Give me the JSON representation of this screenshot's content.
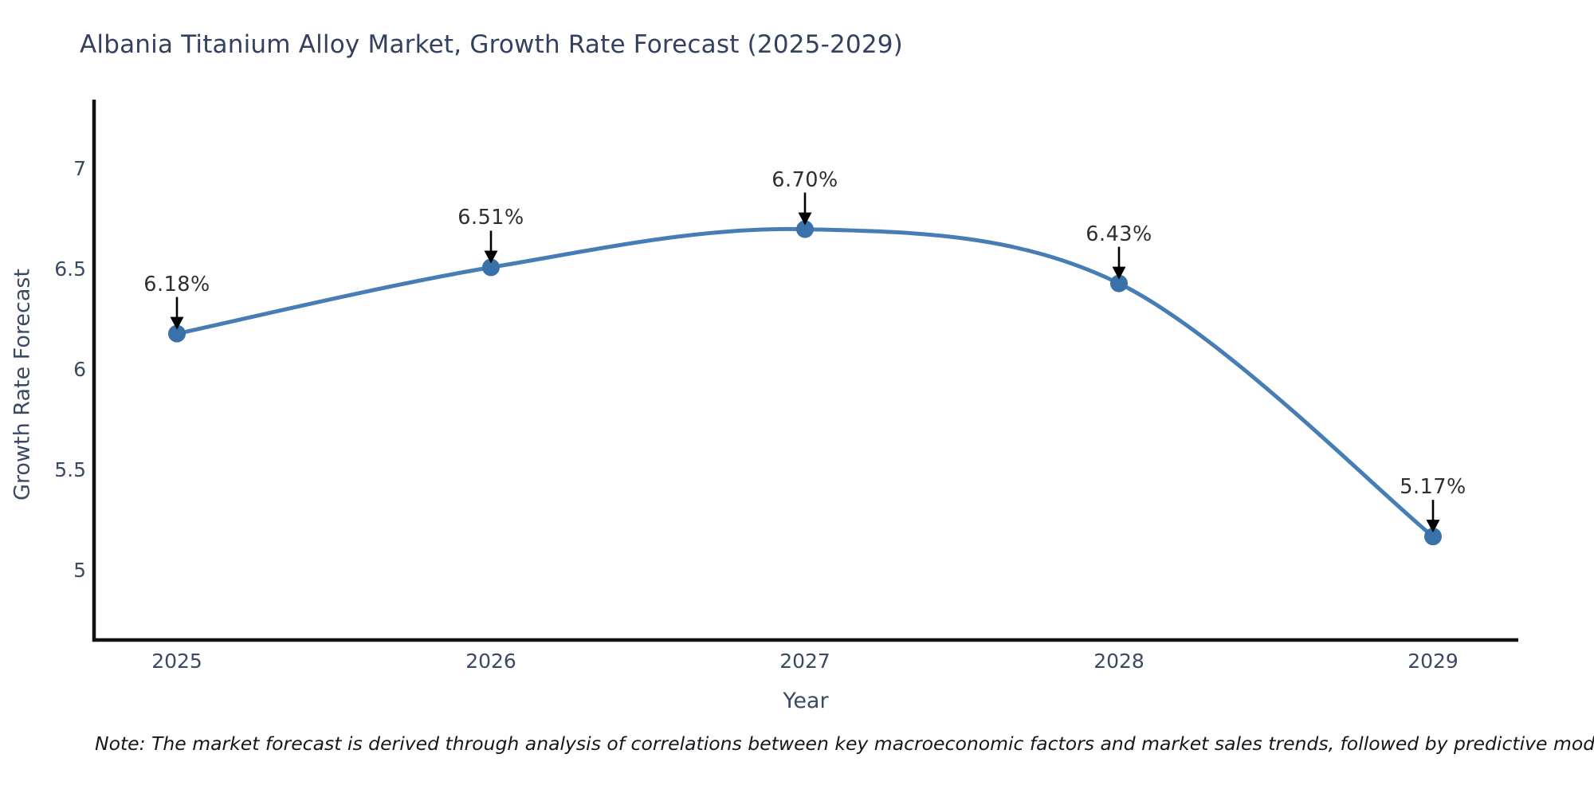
{
  "title": "Albania Titanium Alloy Market, Growth Rate Forecast (2025-2029)",
  "note": "Note: The market forecast is derived through analysis of correlations between key macroeconomic factors and market sales trends, followed by predictive modeling to project future sales",
  "chart_data": {
    "type": "line",
    "title": "Albania Titanium Alloy Market, Growth Rate Forecast (2025-2029)",
    "x": [
      "2025",
      "2026",
      "2027",
      "2028",
      "2029"
    ],
    "values": [
      6.18,
      6.51,
      6.7,
      6.43,
      5.17
    ],
    "point_labels": [
      "6.18%",
      "6.51%",
      "6.70%",
      "6.43%",
      "5.17%"
    ],
    "xlabel": "Year",
    "ylabel": "Growth Rate Forecast",
    "yticks": [
      5,
      5.5,
      6,
      6.5,
      7
    ],
    "ylim": [
      4.65,
      7.35
    ],
    "smooth": true,
    "grid": false,
    "legend": "none",
    "line_color": "#467db4",
    "marker_color": "#3a71a9",
    "annotation_color": "#2d2f33",
    "axis_color": "#111111"
  }
}
